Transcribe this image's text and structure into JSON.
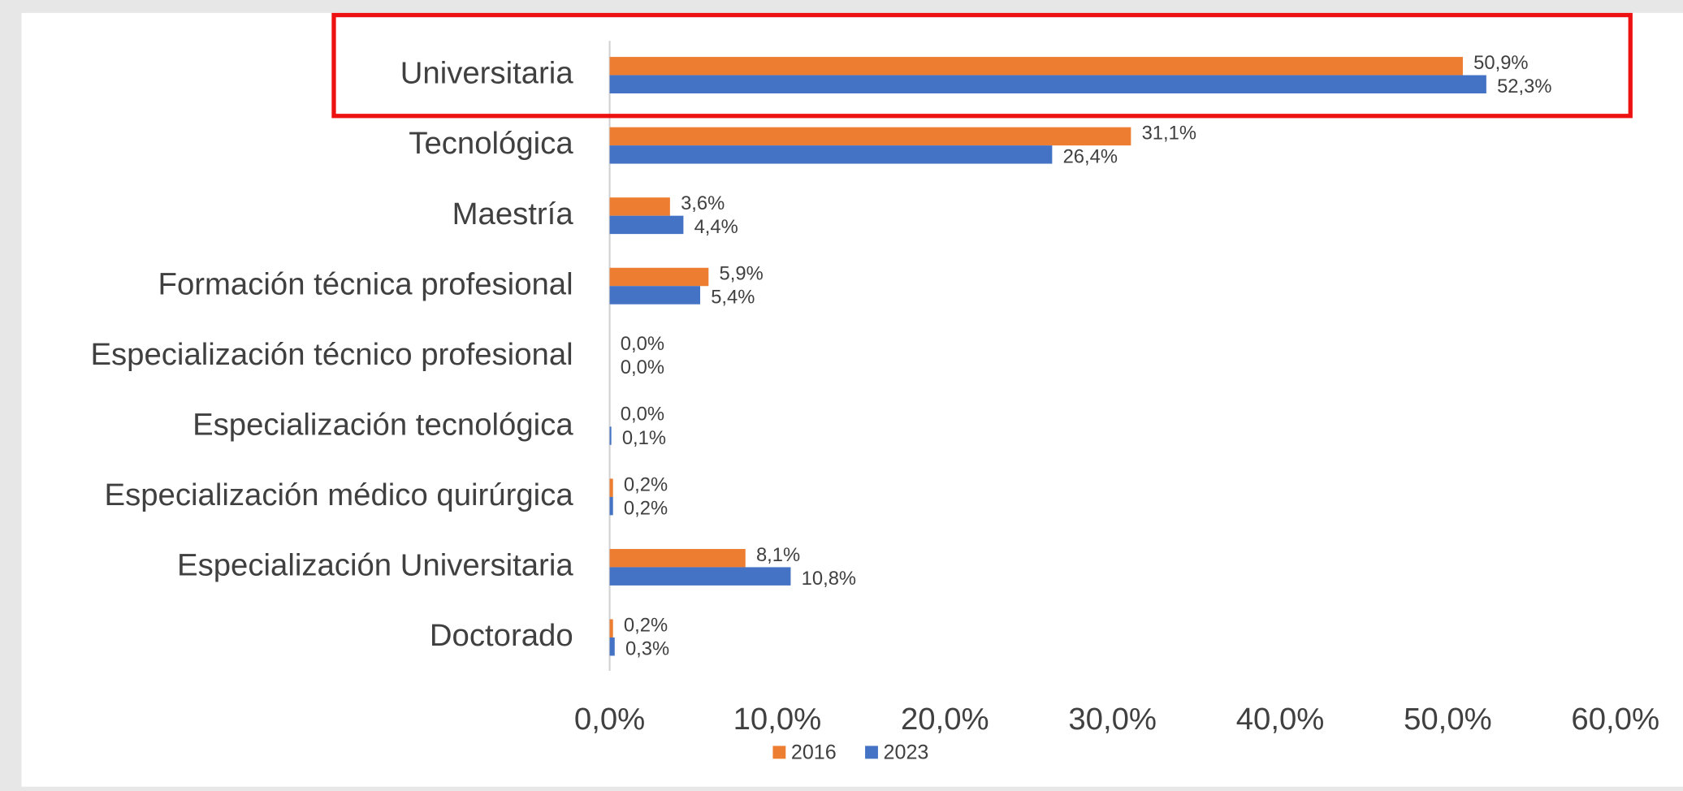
{
  "chart_data": {
    "type": "bar",
    "orientation": "horizontal",
    "categories": [
      "Universitaria",
      "Tecnológica",
      "Maestría",
      "Formación técnica profesional",
      "Especialización técnico profesional",
      "Especialización tecnológica",
      "Especialización médico quirúrgica",
      "Especialización Universitaria",
      "Doctorado"
    ],
    "series": [
      {
        "name": "2016",
        "color": "#ed7d31",
        "values": [
          50.9,
          31.1,
          3.6,
          5.9,
          0.0,
          0.0,
          0.2,
          8.1,
          0.2
        ],
        "value_labels": [
          "50,9%",
          "31,1%",
          "3,6%",
          "5,9%",
          "0,0%",
          "0,0%",
          "0,2%",
          "8,1%",
          "0,2%"
        ]
      },
      {
        "name": "2023",
        "color": "#4472c4",
        "values": [
          52.3,
          26.4,
          4.4,
          5.4,
          0.0,
          0.1,
          0.2,
          10.8,
          0.3
        ],
        "value_labels": [
          "52,3%",
          "26,4%",
          "4,4%",
          "5,4%",
          "0,0%",
          "0,1%",
          "0,2%",
          "10,8%",
          "0,3%"
        ]
      }
    ],
    "xlim": [
      0,
      60
    ],
    "xticks": [
      {
        "value": 0,
        "label": "0,0%"
      },
      {
        "value": 10,
        "label": "10,0%"
      },
      {
        "value": 20,
        "label": "20,0%"
      },
      {
        "value": 30,
        "label": "30,0%"
      },
      {
        "value": 40,
        "label": "40,0%"
      },
      {
        "value": 50,
        "label": "50,0%"
      },
      {
        "value": 60,
        "label": "60,0%"
      }
    ],
    "legend": "bottom"
  }
}
